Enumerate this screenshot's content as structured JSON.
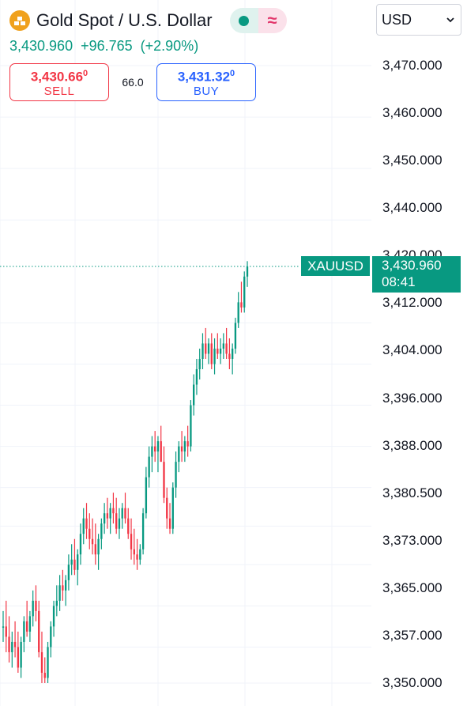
{
  "header": {
    "title": "Gold Spot / U.S. Dollar",
    "last_price": "3,430.960",
    "change": "+96.765",
    "change_percent": "(+2.90%)",
    "logo_icon": "gold-bars-icon",
    "market_status_icon": "market-open-dot-icon",
    "delay_icon": "approx-wave-icon"
  },
  "trade": {
    "sell_price_main": "3,430.66",
    "sell_price_sup": "0",
    "sell_label": "SELL",
    "spread": "66.0",
    "buy_price_main": "3,431.32",
    "buy_price_sup": "0",
    "buy_label": "BUY"
  },
  "currency_select": {
    "value": "USD"
  },
  "price_scale": {
    "labels": [
      "3,470.000",
      "3,460.000",
      "3,450.000",
      "3,440.000",
      "3,420.000",
      "3,412.000",
      "3,404.000",
      "3,396.000",
      "3,388.000",
      "3,380.500",
      "3,373.000",
      "3,365.000",
      "3,357.000",
      "3,350.000"
    ],
    "values": [
      3470,
      3460,
      3450,
      3440,
      3420,
      3412,
      3404,
      3396,
      3388,
      3380.5,
      3373,
      3365,
      3357,
      3350
    ]
  },
  "last_price_tag": {
    "symbol": "XAUUSD",
    "price": "3,430.960",
    "countdown": "08:41"
  },
  "colors": {
    "up": "#089981",
    "down": "#f23645",
    "buy": "#2962ff",
    "sell": "#f23645",
    "grid": "#f0f3fa",
    "accent_gold": "#f0a11d"
  },
  "chart_data": {
    "type": "candlestick",
    "symbol": "XAUUSD",
    "ylim": [
      3348,
      3478
    ],
    "last_price": 3430.96,
    "candles": [
      [
        3361,
        3364,
        3358,
        3361
      ],
      [
        3361,
        3366,
        3356,
        3359
      ],
      [
        3359,
        3363,
        3354,
        3356
      ],
      [
        3356,
        3360,
        3353,
        3358
      ],
      [
        3358,
        3362,
        3355,
        3357
      ],
      [
        3357,
        3360,
        3352,
        3353
      ],
      [
        3353,
        3359,
        3351,
        3358
      ],
      [
        3358,
        3363,
        3356,
        3362
      ],
      [
        3362,
        3366,
        3359,
        3360
      ],
      [
        3360,
        3364,
        3358,
        3363
      ],
      [
        3363,
        3368,
        3361,
        3366
      ],
      [
        3366,
        3369,
        3362,
        3364
      ],
      [
        3364,
        3366,
        3355,
        3356
      ],
      [
        3356,
        3360,
        3350,
        3352
      ],
      [
        3352,
        3355,
        3350,
        3351
      ],
      [
        3351,
        3358,
        3350,
        3357
      ],
      [
        3357,
        3362,
        3355,
        3361
      ],
      [
        3361,
        3366,
        3359,
        3365
      ],
      [
        3365,
        3369,
        3363,
        3366
      ],
      [
        3366,
        3371,
        3364,
        3369
      ],
      [
        3369,
        3372,
        3366,
        3368
      ],
      [
        3368,
        3371,
        3365,
        3370
      ],
      [
        3370,
        3375,
        3368,
        3373
      ],
      [
        3373,
        3377,
        3371,
        3374
      ],
      [
        3374,
        3378,
        3371,
        3372
      ],
      [
        3372,
        3376,
        3369,
        3375
      ],
      [
        3375,
        3381,
        3373,
        3379
      ],
      [
        3379,
        3384,
        3377,
        3382
      ],
      [
        3382,
        3385,
        3378,
        3380
      ],
      [
        3380,
        3383,
        3376,
        3378
      ],
      [
        3378,
        3382,
        3375,
        3377
      ],
      [
        3377,
        3381,
        3373,
        3375
      ],
      [
        3375,
        3379,
        3372,
        3378
      ],
      [
        3378,
        3382,
        3376,
        3381
      ],
      [
        3381,
        3385,
        3379,
        3383
      ],
      [
        3383,
        3386,
        3380,
        3382
      ],
      [
        3382,
        3385,
        3379,
        3384
      ],
      [
        3384,
        3387,
        3381,
        3383
      ],
      [
        3383,
        3386,
        3379,
        3380
      ],
      [
        3380,
        3384,
        3378,
        3382
      ],
      [
        3382,
        3385,
        3380,
        3384
      ],
      [
        3384,
        3387,
        3381,
        3382
      ],
      [
        3382,
        3384,
        3378,
        3379
      ],
      [
        3379,
        3382,
        3374,
        3376
      ],
      [
        3376,
        3380,
        3373,
        3375
      ],
      [
        3375,
        3378,
        3372,
        3374
      ],
      [
        3374,
        3377,
        3373,
        3376
      ],
      [
        3376,
        3384,
        3375,
        3383
      ],
      [
        3383,
        3392,
        3382,
        3390
      ],
      [
        3390,
        3396,
        3388,
        3394
      ],
      [
        3394,
        3398,
        3391,
        3396
      ],
      [
        3396,
        3399,
        3393,
        3395
      ],
      [
        3395,
        3398,
        3391,
        3397
      ],
      [
        3397,
        3400,
        3394,
        3393
      ],
      [
        3393,
        3396,
        3385,
        3386
      ],
      [
        3386,
        3388,
        3380,
        3382
      ],
      [
        3382,
        3385,
        3379,
        3380
      ],
      [
        3380,
        3389,
        3379,
        3388
      ],
      [
        3388,
        3395,
        3386,
        3393
      ],
      [
        3393,
        3397,
        3391,
        3396
      ],
      [
        3396,
        3399,
        3393,
        3395
      ],
      [
        3395,
        3398,
        3393,
        3397
      ],
      [
        3397,
        3400,
        3394,
        3396
      ],
      [
        3396,
        3405,
        3395,
        3404
      ],
      [
        3404,
        3410,
        3402,
        3408
      ],
      [
        3408,
        3413,
        3406,
        3411
      ],
      [
        3411,
        3415,
        3409,
        3413
      ],
      [
        3413,
        3418,
        3411,
        3416
      ],
      [
        3416,
        3419,
        3413,
        3414
      ],
      [
        3414,
        3417,
        3412,
        3416
      ],
      [
        3416,
        3418,
        3411,
        3412
      ],
      [
        3412,
        3417,
        3410,
        3415
      ],
      [
        3415,
        3418,
        3413,
        3414
      ],
      [
        3414,
        3417,
        3412,
        3415
      ],
      [
        3415,
        3418,
        3413,
        3416
      ],
      [
        3416,
        3419,
        3413,
        3414
      ],
      [
        3414,
        3417,
        3411,
        3413
      ],
      [
        3413,
        3416,
        3410,
        3415
      ],
      [
        3415,
        3421,
        3414,
        3420
      ],
      [
        3420,
        3426,
        3419,
        3424
      ],
      [
        3424,
        3428,
        3422,
        3423
      ],
      [
        3423,
        3430,
        3422,
        3429
      ],
      [
        3429,
        3432,
        3427,
        3430.96
      ]
    ]
  }
}
